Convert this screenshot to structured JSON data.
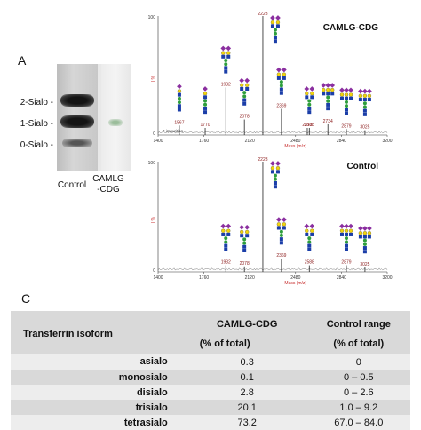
{
  "panel_a": {
    "letter": "A",
    "band_labels": [
      "2-Sialo -",
      "1-Sialo -",
      "0-Sialo -"
    ],
    "lane_labels": [
      "Control",
      "CAMLG\n-CDG"
    ]
  },
  "panel_c": {
    "letter": "C",
    "headers": {
      "col1": "Transferrin isoform",
      "col2_line1": "CAMLG-CDG",
      "col2_line2": "(% of total)",
      "col3_line1": "Control range",
      "col3_line2": "(% of total)"
    },
    "rows": [
      {
        "isoform": "asialo",
        "camlg": "0.3",
        "control": "0"
      },
      {
        "isoform": "monosialo",
        "camlg": "0.1",
        "control": "0 – 0.5"
      },
      {
        "isoform": "disialo",
        "camlg": "2.8",
        "control": "0 – 2.6"
      },
      {
        "isoform": "trisialo",
        "camlg": "20.1",
        "control": "1.0 – 9.2"
      },
      {
        "isoform": "tetrasialo",
        "camlg": "73.2",
        "control": "67.0 – 84.0"
      }
    ]
  },
  "chart_data": [
    {
      "type": "line",
      "title": "CAMLG-CDG",
      "xlabel": "Mass (m/z)",
      "ylabel": "% I",
      "ymax_label": "100",
      "ymin_label": "0",
      "xlim": [
        1400,
        3200
      ],
      "x_ticks": [
        1400,
        1760,
        2120,
        2480,
        2840,
        3200
      ],
      "ylim": [
        0,
        100
      ],
      "footnote": "* impurities",
      "peaks": [
        {
          "x": 1567,
          "y": 8,
          "label": "1567"
        },
        {
          "x": 1770,
          "y": 6,
          "label": "1770"
        },
        {
          "x": 1932,
          "y": 40,
          "label": "1932"
        },
        {
          "x": 2078,
          "y": 13,
          "label": "2078"
        },
        {
          "x": 2223,
          "y": 100,
          "label": "2223"
        },
        {
          "x": 2369,
          "y": 22,
          "label": "2369"
        },
        {
          "x": 2572,
          "y": 6,
          "label": "2572"
        },
        {
          "x": 2588,
          "y": 6,
          "label": "2588"
        },
        {
          "x": 2734,
          "y": 9,
          "label": "2734"
        },
        {
          "x": 2879,
          "y": 5,
          "label": "2879"
        },
        {
          "x": 3025,
          "y": 4,
          "label": "3025"
        }
      ]
    },
    {
      "type": "line",
      "title": "Control",
      "xlabel": "Mass (m/z)",
      "ylabel": "% I",
      "ymax_label": "100",
      "ymin_label": "0",
      "xlim": [
        1400,
        3200
      ],
      "x_ticks": [
        1400,
        1760,
        2120,
        2480,
        2840,
        3200
      ],
      "ylim": [
        0,
        100
      ],
      "peaks": [
        {
          "x": 1932,
          "y": 6,
          "label": "1932"
        },
        {
          "x": 2078,
          "y": 5,
          "label": "2078"
        },
        {
          "x": 2223,
          "y": 100,
          "label": "2223"
        },
        {
          "x": 2369,
          "y": 12,
          "label": "2369"
        },
        {
          "x": 2588,
          "y": 6,
          "label": "2588"
        },
        {
          "x": 2879,
          "y": 6,
          "label": "2879"
        },
        {
          "x": 3025,
          "y": 4,
          "label": "3025"
        }
      ]
    }
  ]
}
